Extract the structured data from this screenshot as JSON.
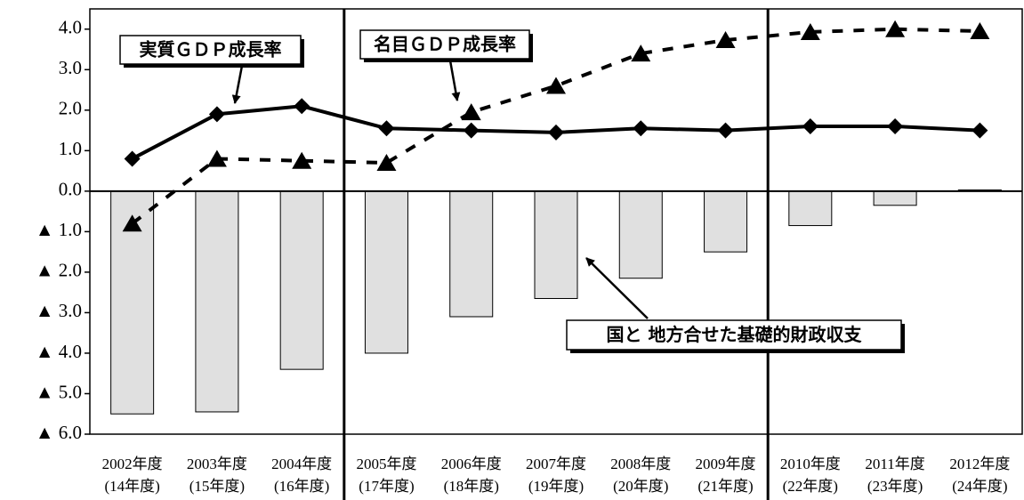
{
  "chart_data": {
    "type": "bar-line",
    "categories": [
      [
        "2002年度",
        "(14年度)"
      ],
      [
        "2003年度",
        "(15年度)"
      ],
      [
        "2004年度",
        "(16年度)"
      ],
      [
        "2005年度",
        "(17年度)"
      ],
      [
        "2006年度",
        "(18年度)"
      ],
      [
        "2007年度",
        "(19年度)"
      ],
      [
        "2008年度",
        "(20年度)"
      ],
      [
        "2009年度",
        "(21年度)"
      ],
      [
        "2010年度",
        "(22年度)"
      ],
      [
        "2011年度",
        "(23年度)"
      ],
      [
        "2012年度",
        "(24年度)"
      ]
    ],
    "series": [
      {
        "name": "国と 地方合せた基礎的財政収支",
        "type": "bar",
        "color": "#e0e0e0",
        "values": [
          -5.5,
          -5.45,
          -4.4,
          -4.0,
          -3.1,
          -2.65,
          -2.15,
          -1.5,
          -0.85,
          -0.35,
          0.03
        ]
      },
      {
        "name": "実質ＧＤＰ成長率",
        "type": "line",
        "color": "#000000",
        "marker": "diamond",
        "dashed": false,
        "values": [
          0.8,
          1.9,
          2.1,
          1.55,
          1.5,
          1.45,
          1.55,
          1.5,
          1.6,
          1.6,
          1.5
        ]
      },
      {
        "name": "名目ＧＤＰ成長率",
        "type": "line",
        "color": "#000000",
        "marker": "triangle",
        "dashed": true,
        "values": [
          -0.8,
          0.8,
          0.75,
          0.7,
          1.95,
          2.6,
          3.4,
          3.73,
          3.93,
          4.0,
          3.95
        ]
      }
    ],
    "ylim": [
      -6,
      4.5
    ],
    "yticks": [
      {
        "value": 4,
        "label": "4.0"
      },
      {
        "value": 3,
        "label": "3.0"
      },
      {
        "value": 2,
        "label": "2.0"
      },
      {
        "value": 1,
        "label": "1.0"
      },
      {
        "value": 0,
        "label": "0.0"
      },
      {
        "value": -1,
        "label": "▲ 1.0"
      },
      {
        "value": -2,
        "label": "▲ 2.0"
      },
      {
        "value": -3,
        "label": "▲ 3.0"
      },
      {
        "value": -4,
        "label": "▲ 4.0"
      },
      {
        "value": -5,
        "label": "▲ 5.0"
      },
      {
        "value": -6,
        "label": "▲ 6.0"
      }
    ],
    "dividers_after": [
      3,
      8
    ]
  }
}
